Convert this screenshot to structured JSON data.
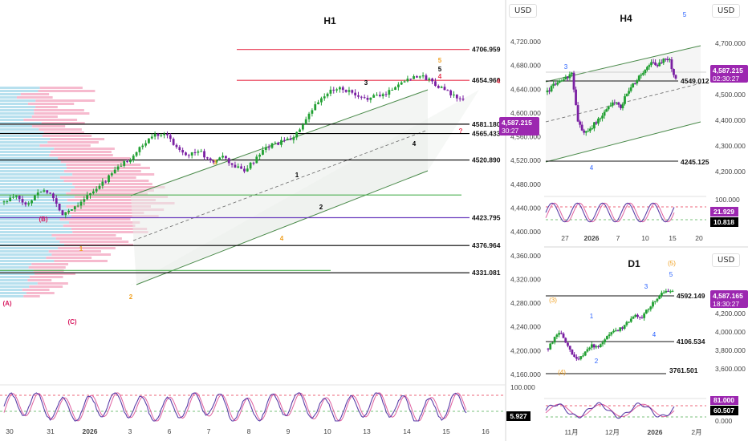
{
  "colors": {
    "up": "#22a033",
    "down": "#7a1fa2",
    "red": "#e8334d",
    "green": "#4caf50",
    "purple_line": "#6a3cbe",
    "channel": "#4a8a4a",
    "price_tag": "#9c27b0",
    "blue_wave": "#2962ff",
    "orange_wave": "#f0a020",
    "crimson_wave": "#d81b60",
    "vp_pink": "#f4a9c2",
    "vp_blue": "#9fd6e8"
  },
  "currency": "USD",
  "h1": {
    "title": "H1",
    "yticks": [
      "4,720.000",
      "4,680.000",
      "4,640.000",
      "4,600.000",
      "4,560.000",
      "4,520.000",
      "4,480.000",
      "4,440.000",
      "4,400.000",
      "4,360.000",
      "4,320.000",
      "4,280.000",
      "4,240.000",
      "4,200.000",
      "4,160.000"
    ],
    "xticks": [
      "30",
      "31",
      "2026",
      "3",
      "6",
      "7",
      "8",
      "9",
      "10",
      "13",
      "14",
      "15",
      "16"
    ],
    "levels": [
      {
        "label": "4706.959",
        "color": "#e8334d",
        "value": 4706.959
      },
      {
        "label": "4654.960",
        "color": "#e8334d",
        "value": 4654.96
      },
      {
        "label": "4581.180",
        "color": "#000000",
        "value": 4581.18
      },
      {
        "label": "4565.433",
        "color": "#000000",
        "value": 4565.433
      },
      {
        "label": "4520.890",
        "color": "#000000",
        "value": 4520.89
      },
      {
        "label": "4423.795",
        "color": "#6a3cbe",
        "value": 4423.795
      },
      {
        "label": "4376.964",
        "color": "#000000",
        "value": 4376.964
      },
      {
        "label": "4331.081",
        "color": "#000000",
        "value": 4331.081
      },
      {
        "label": "",
        "color": "#4caf50",
        "value": 4462
      },
      {
        "label": "",
        "color": "#4caf50",
        "value": 4335
      }
    ],
    "price_tag": {
      "price": "4,587.215",
      "timer": "30:27"
    },
    "waves": [
      {
        "t": "5",
        "c": "#f0a020"
      },
      {
        "t": "5",
        "c": "#000000"
      },
      {
        "t": "4",
        "c": "#e8334d"
      },
      {
        "t": "4",
        "c": "#e8334d"
      },
      {
        "t": "3",
        "c": "#000000"
      },
      {
        "t": "?",
        "c": "#e8334d"
      },
      {
        "t": "4",
        "c": "#000000"
      },
      {
        "t": "3",
        "c": "#f0a020"
      },
      {
        "t": "1",
        "c": "#000000"
      },
      {
        "t": "2",
        "c": "#000000"
      },
      {
        "t": "4",
        "c": "#f0a020"
      },
      {
        "t": "(B)",
        "c": "#d81b60"
      },
      {
        "t": "1",
        "c": "#f0a020"
      },
      {
        "t": "(A)",
        "c": "#d81b60"
      },
      {
        "t": "(C)",
        "c": "#d81b60"
      },
      {
        "t": "2",
        "c": "#f0a020"
      }
    ],
    "osc": {
      "tick": "100.000",
      "value": "5.927"
    }
  },
  "h4": {
    "title": "H4",
    "yticks": [
      "4,700.000",
      "4,600.000",
      "4,500.000",
      "4,400.000",
      "4,300.000",
      "4,200.000"
    ],
    "xticks": [
      "27",
      "2026",
      "7",
      "10",
      "15",
      "20"
    ],
    "levels": [
      {
        "label": "4549.012"
      },
      {
        "label": "4245.125"
      }
    ],
    "price_tag": {
      "price": "4,587.215",
      "timer": "02:30:27"
    },
    "waves": [
      {
        "t": "5"
      },
      {
        "t": "3"
      },
      {
        "t": "4"
      }
    ],
    "osc": {
      "tick": "100.000",
      "value_a": "21.929",
      "value_b": "10.818"
    }
  },
  "d1": {
    "title": "D1",
    "yticks": [
      "4,400.000",
      "4,200.000",
      "4,000.000",
      "3,800.000",
      "3,600.000"
    ],
    "xticks": [
      "11月",
      "12月",
      "2026",
      "2月"
    ],
    "levels": [
      {
        "label": "4592.149"
      },
      {
        "label": "4106.534"
      },
      {
        "label": "3761.501"
      }
    ],
    "price_tag": {
      "price": "4,587.165",
      "timer": "18:30:27"
    },
    "waves": [
      {
        "t": "(5)",
        "c": "#f0a020"
      },
      {
        "t": "5",
        "c": "#2962ff"
      },
      {
        "t": "3",
        "c": "#2962ff"
      },
      {
        "t": "(3)",
        "c": "#f0a020"
      },
      {
        "t": "1",
        "c": "#2962ff"
      },
      {
        "t": "4",
        "c": "#2962ff"
      },
      {
        "t": "2",
        "c": "#2962ff"
      },
      {
        "t": "(4)",
        "c": "#f0a020"
      }
    ],
    "osc": {
      "tick": "0.000",
      "value_a": "81.000",
      "value_b": "60.507"
    }
  },
  "chart_data": [
    {
      "type": "candlestick",
      "title": "H1",
      "ylim": [
        4150,
        4735
      ],
      "series": [
        {
          "name": "",
          "values": [
            4330,
            4345,
            4320,
            4360,
            4355,
            4300,
            4315,
            4340,
            4360,
            4390,
            4420,
            4440,
            4470,
            4500,
            4505,
            4470,
            4450,
            4460,
            4430,
            4445,
            4420,
            4410,
            4440,
            4470,
            4480,
            4490,
            4520,
            4570,
            4600,
            4620,
            4610,
            4590,
            4595,
            4600,
            4620,
            4640,
            4650,
            4640,
            4620,
            4600,
            4587
          ]
        }
      ]
    },
    {
      "type": "candlestick",
      "title": "H4",
      "ylim": [
        4150,
        4760
      ],
      "series": [
        {
          "name": "",
          "values": [
            4520,
            4560,
            4580,
            4600,
            4620,
            4360,
            4300,
            4320,
            4360,
            4390,
            4450,
            4470,
            4440,
            4520,
            4560,
            4600,
            4640,
            4680,
            4660,
            4700,
            4690,
            4587
          ]
        }
      ]
    },
    {
      "type": "candlestick",
      "title": "D1",
      "ylim": [
        3600,
        4600
      ],
      "series": [
        {
          "name": "",
          "values": [
            4050,
            4150,
            4200,
            4100,
            3980,
            3950,
            4010,
            4080,
            4060,
            4130,
            4200,
            4220,
            4250,
            4310,
            4360,
            4340,
            4420,
            4500,
            4560,
            4590,
            4587
          ]
        }
      ]
    }
  ]
}
